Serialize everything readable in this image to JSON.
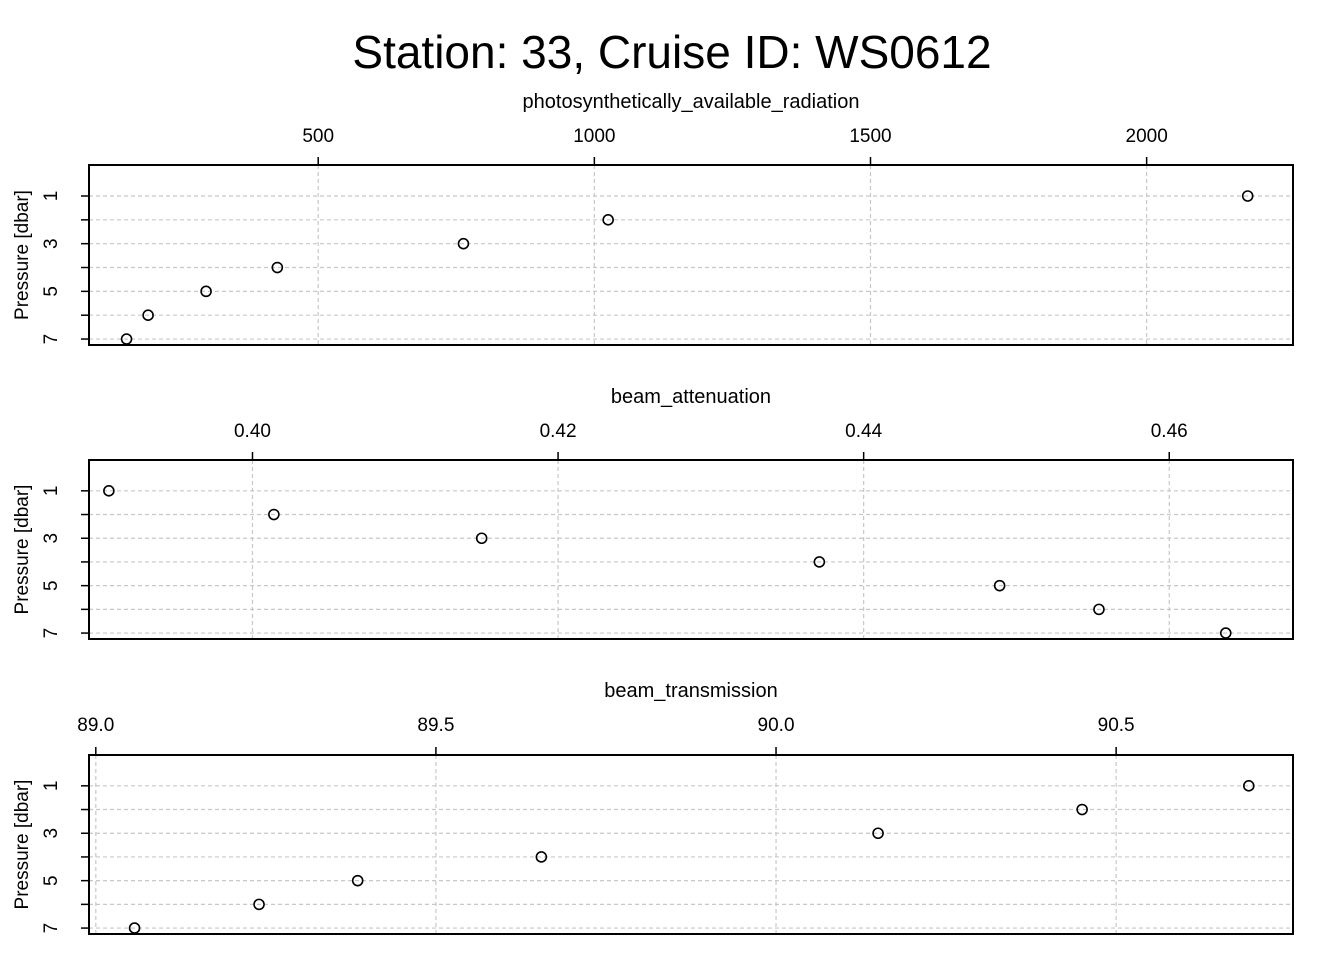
{
  "title": "Station: 33, Cruise ID: WS0612",
  "chart_data": [
    {
      "type": "scatter",
      "title": "photosynthetically_available_radiation",
      "xlabel": "photosynthetically_available_radiation",
      "ylabel": "Pressure [dbar]",
      "x_ticks": [
        500,
        1000,
        1500,
        2000
      ],
      "x_tick_labels": [
        "500",
        "1000",
        "1500",
        "2000"
      ],
      "xlim": [
        85,
        2265
      ],
      "y_ticks": [
        1,
        3,
        5,
        7
      ],
      "y_tick_labels": [
        "1",
        "3",
        "5",
        "7"
      ],
      "y_grid": [
        1,
        2,
        3,
        4,
        5,
        6,
        7
      ],
      "ylim": [
        7.25,
        -0.3
      ],
      "grid": true,
      "x": [
        2183,
        1025,
        763,
        426,
        297,
        192,
        153
      ],
      "y": [
        1,
        2,
        3,
        4,
        5,
        6,
        7
      ]
    },
    {
      "type": "scatter",
      "title": "beam_attenuation",
      "xlabel": "beam_attenuation",
      "ylabel": "Pressure [dbar]",
      "x_ticks": [
        0.4,
        0.42,
        0.44,
        0.46
      ],
      "x_tick_labels": [
        "0.40",
        "0.42",
        "0.44",
        "0.46"
      ],
      "xlim": [
        0.3893,
        0.4681
      ],
      "y_ticks": [
        1,
        3,
        5,
        7
      ],
      "y_tick_labels": [
        "1",
        "3",
        "5",
        "7"
      ],
      "y_grid": [
        1,
        2,
        3,
        4,
        5,
        6,
        7
      ],
      "ylim": [
        7.25,
        -0.3
      ],
      "grid": true,
      "x": [
        0.3906,
        0.4014,
        0.415,
        0.4371,
        0.4489,
        0.4554,
        0.4637
      ],
      "y": [
        1,
        2,
        3,
        4,
        5,
        6,
        7
      ]
    },
    {
      "type": "scatter",
      "title": "beam_transmission",
      "xlabel": "beam_transmission",
      "ylabel": "Pressure [dbar]",
      "x_ticks": [
        89.0,
        89.5,
        90.0,
        90.5
      ],
      "x_tick_labels": [
        "89.0",
        "89.5",
        "90.0",
        "90.5"
      ],
      "xlim": [
        88.99,
        90.76
      ],
      "y_ticks": [
        1,
        3,
        5,
        7
      ],
      "y_tick_labels": [
        "1",
        "3",
        "5",
        "7"
      ],
      "y_grid": [
        1,
        2,
        3,
        4,
        5,
        6,
        7
      ],
      "ylim": [
        7.25,
        -0.3
      ],
      "grid": true,
      "x": [
        90.695,
        90.45,
        90.15,
        89.655,
        89.385,
        89.24,
        89.057
      ],
      "y": [
        1,
        2,
        3,
        4,
        5,
        6,
        7
      ]
    }
  ]
}
